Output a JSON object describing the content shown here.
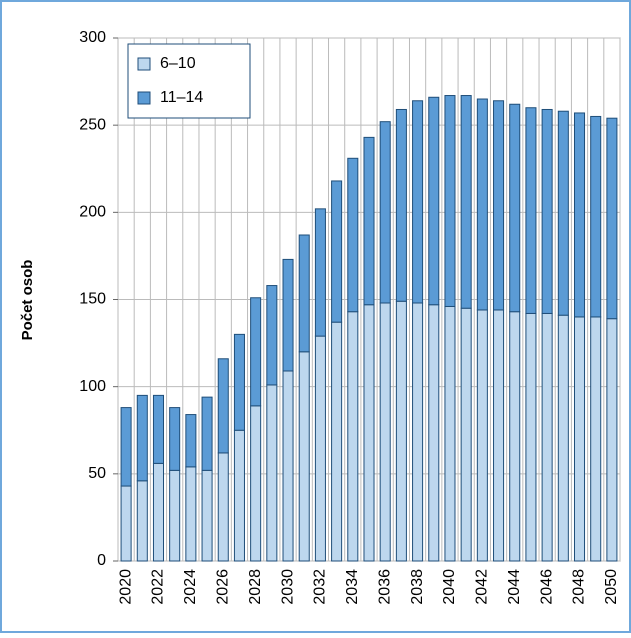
{
  "chart_data": {
    "type": "stacked-bar",
    "ylabel": "Počet osob",
    "categories": [
      "2020",
      null,
      "2022",
      null,
      "2024",
      null,
      "2026",
      null,
      "2028",
      null,
      "2030",
      null,
      "2032",
      null,
      "2034",
      null,
      "2036",
      null,
      "2038",
      null,
      "2040",
      null,
      "2042",
      null,
      "2044",
      null,
      "2046",
      null,
      "2048",
      null,
      "2050"
    ],
    "series": [
      {
        "name": "6–10",
        "color": "#bdd7ee",
        "values": [
          43,
          46,
          56,
          52,
          54,
          52,
          62,
          75,
          89,
          101,
          109,
          120,
          129,
          137,
          143,
          147,
          148,
          149,
          148,
          147,
          146,
          145,
          144,
          144,
          143,
          142,
          142,
          141,
          140,
          140,
          139
        ]
      },
      {
        "name": "11–14",
        "color": "#5b9bd5",
        "values": [
          45,
          49,
          39,
          36,
          30,
          42,
          54,
          55,
          62,
          57,
          64,
          67,
          73,
          81,
          88,
          96,
          104,
          110,
          116,
          119,
          121,
          122,
          121,
          120,
          119,
          118,
          117,
          117,
          117,
          115,
          115
        ]
      }
    ],
    "ylim": [
      0,
      300
    ],
    "yticks": [
      0,
      50,
      100,
      150,
      200,
      250,
      300
    ],
    "grid": true,
    "legend": "top-left"
  }
}
